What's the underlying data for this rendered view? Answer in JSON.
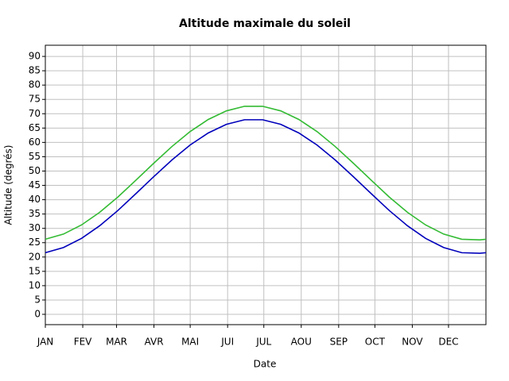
{
  "chart_data": {
    "type": "line",
    "title": "Altitude maximale du soleil",
    "xlabel": "Date",
    "ylabel": "Altitude (degrés)",
    "x": [
      0,
      15,
      30,
      45,
      60,
      75,
      90,
      105,
      120,
      135,
      150,
      165,
      180,
      195,
      210,
      225,
      240,
      255,
      270,
      285,
      300,
      315,
      330,
      345,
      360,
      365
    ],
    "series": [
      {
        "color": "#33bb33",
        "values": [
          26.2,
          28.0,
          31.2,
          35.6,
          40.9,
          46.8,
          52.8,
          58.6,
          63.8,
          68.0,
          71.0,
          72.6,
          72.6,
          71.0,
          68.0,
          63.8,
          58.6,
          52.8,
          46.8,
          40.9,
          35.6,
          31.2,
          28.0,
          26.2,
          26.0,
          26.2
        ]
      },
      {
        "color": "#0000bb",
        "values": [
          21.5,
          23.3,
          26.5,
          30.9,
          36.2,
          42.1,
          48.1,
          53.9,
          59.1,
          63.3,
          66.3,
          67.9,
          67.9,
          66.3,
          63.3,
          59.1,
          53.9,
          48.1,
          42.1,
          36.2,
          30.9,
          26.5,
          23.3,
          21.5,
          21.3,
          21.5
        ]
      }
    ],
    "xlim": [
      0,
      365
    ],
    "xticks": [
      {
        "value": 0,
        "label": "JAN"
      },
      {
        "value": 31,
        "label": "FEV"
      },
      {
        "value": 59,
        "label": "MAR"
      },
      {
        "value": 90,
        "label": "AVR"
      },
      {
        "value": 120,
        "label": "MAI"
      },
      {
        "value": 151,
        "label": "JUI"
      },
      {
        "value": 181,
        "label": "JUL"
      },
      {
        "value": 212,
        "label": "AOU"
      },
      {
        "value": 243,
        "label": "SEP"
      },
      {
        "value": 273,
        "label": "OCT"
      },
      {
        "value": 304,
        "label": "NOV"
      },
      {
        "value": 334,
        "label": "DEC"
      }
    ],
    "ylim": [
      -3.6,
      93.9
    ],
    "yticks": [
      0,
      5,
      10,
      15,
      20,
      25,
      30,
      35,
      40,
      45,
      50,
      55,
      60,
      65,
      70,
      75,
      80,
      85,
      90
    ],
    "grid": true
  }
}
